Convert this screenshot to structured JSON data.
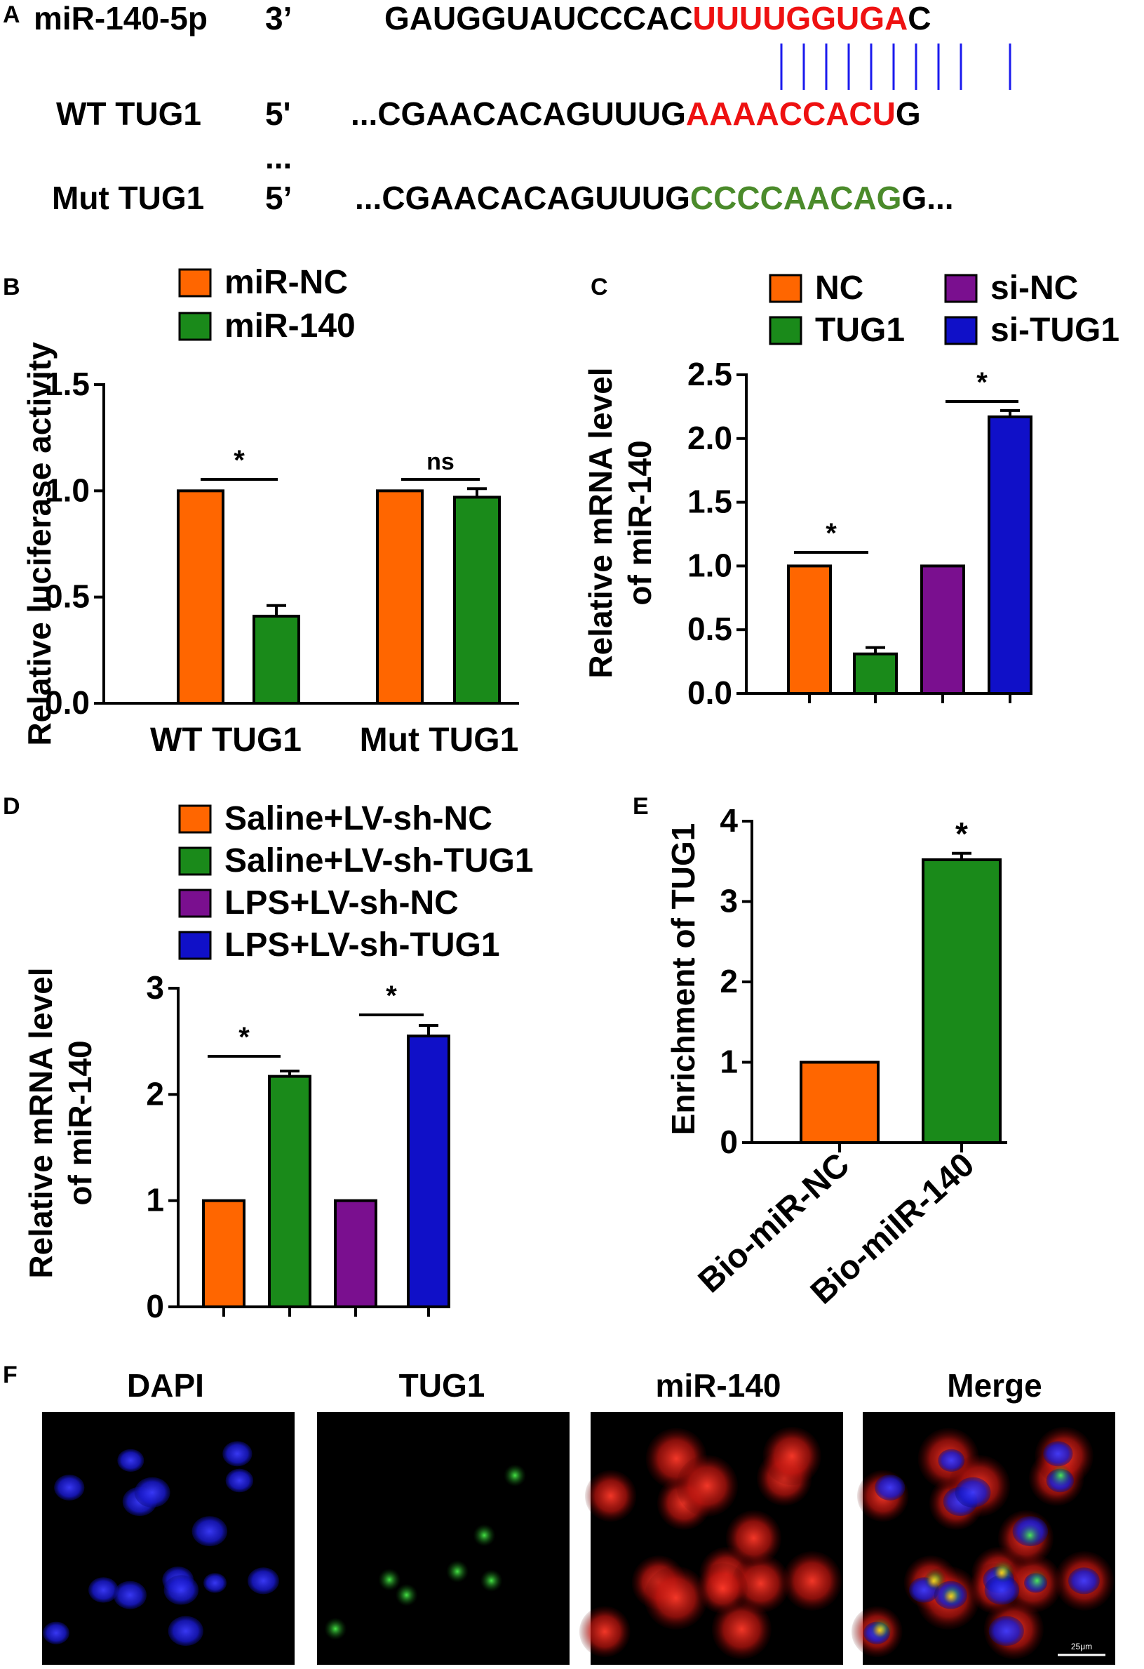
{
  "panel_labels": [
    "A",
    "B",
    "C",
    "D",
    "E",
    "F"
  ],
  "panel_a": {
    "mir": {
      "name": "miR-140-5p",
      "end": "3’",
      "seq_black": "GAUGGUAUCCCAC",
      "seq_red": "UUUUGGUGA",
      "seq_tail": "C"
    },
    "wt": {
      "name": "WT TUG1",
      "end": "5'",
      "seq_black": "...CGAACACAGUUUG",
      "seq_red": "AAAACCACU",
      "seq_tail": "G"
    },
    "dots": "...",
    "mut": {
      "name": "Mut TUG1",
      "end": "5’",
      "seq_black": "...CGAACACAGUUUG",
      "seq_green": "CCCCAACAG",
      "seq_tail": "G..."
    }
  },
  "colors": {
    "orange": "#ff6600",
    "green": "#1a8a1a",
    "purple": "#7a0f8f",
    "blue": "#1010c8",
    "red": "#ee1111",
    "seqgreen": "#4b8b2b",
    "line": "#1a1aee"
  },
  "chart_data": [
    {
      "panel": "B",
      "type": "bar",
      "ylabel": "Relative luciferase activity",
      "ylim": [
        0,
        1.5
      ],
      "yticks": [
        "0.0",
        "0.5",
        "1.0",
        "1.5"
      ],
      "categories": [
        "WT TUG1",
        "Mut TUG1"
      ],
      "series": [
        {
          "name": "miR-NC",
          "values": [
            1.0,
            1.0
          ],
          "errors": [
            0,
            0
          ]
        },
        {
          "name": "miR-140",
          "values": [
            0.41,
            0.97
          ],
          "errors": [
            0.05,
            0.04
          ]
        }
      ],
      "significance": [
        "*",
        "ns"
      ]
    },
    {
      "panel": "C",
      "type": "bar",
      "ylabel": "Relative mRNA level of miR-140",
      "ylim": [
        0,
        2.5
      ],
      "yticks": [
        "0.0",
        "0.5",
        "1.0",
        "1.5",
        "2.0",
        "2.5"
      ],
      "categories": [
        "NC",
        "TUG1",
        "si-NC",
        "si-TUG1"
      ],
      "values": [
        1.0,
        0.31,
        1.0,
        2.17
      ],
      "errors": [
        0,
        0.05,
        0,
        0.05
      ],
      "legend": [
        "NC",
        "TUG1",
        "si-NC",
        "si-TUG1"
      ],
      "significance": [
        "*",
        "*"
      ]
    },
    {
      "panel": "D",
      "type": "bar",
      "ylabel": "Relative mRNA level of miR-140",
      "ylim": [
        0,
        3
      ],
      "yticks": [
        "0",
        "1",
        "2",
        "3"
      ],
      "categories": [
        "Saline+LV-sh-NC",
        "Saline+LV-sh-TUG1",
        "LPS+LV-sh-NC",
        "LPS+LV-sh-TUG1"
      ],
      "values": [
        1.0,
        2.17,
        1.0,
        2.55
      ],
      "errors": [
        0,
        0.05,
        0,
        0.1
      ],
      "legend": [
        "Saline+LV-sh-NC",
        "Saline+LV-sh-TUG1",
        "LPS+LV-sh-NC",
        "LPS+LV-sh-TUG1"
      ],
      "significance": [
        "*",
        "*"
      ]
    },
    {
      "panel": "E",
      "type": "bar",
      "ylabel": "Enrichment of TUG1",
      "ylim": [
        0,
        4
      ],
      "yticks": [
        "0",
        "1",
        "2",
        "3",
        "4"
      ],
      "categories": [
        "Bio-miR-NC",
        "Bio-miIR-140"
      ],
      "values": [
        1.0,
        3.52
      ],
      "errors": [
        0,
        0.08
      ],
      "significance": [
        "*"
      ]
    }
  ],
  "panel_f": {
    "titles": [
      "DAPI",
      "TUG1",
      "miR-140",
      "Merge"
    ],
    "scalebar": "25μm"
  }
}
